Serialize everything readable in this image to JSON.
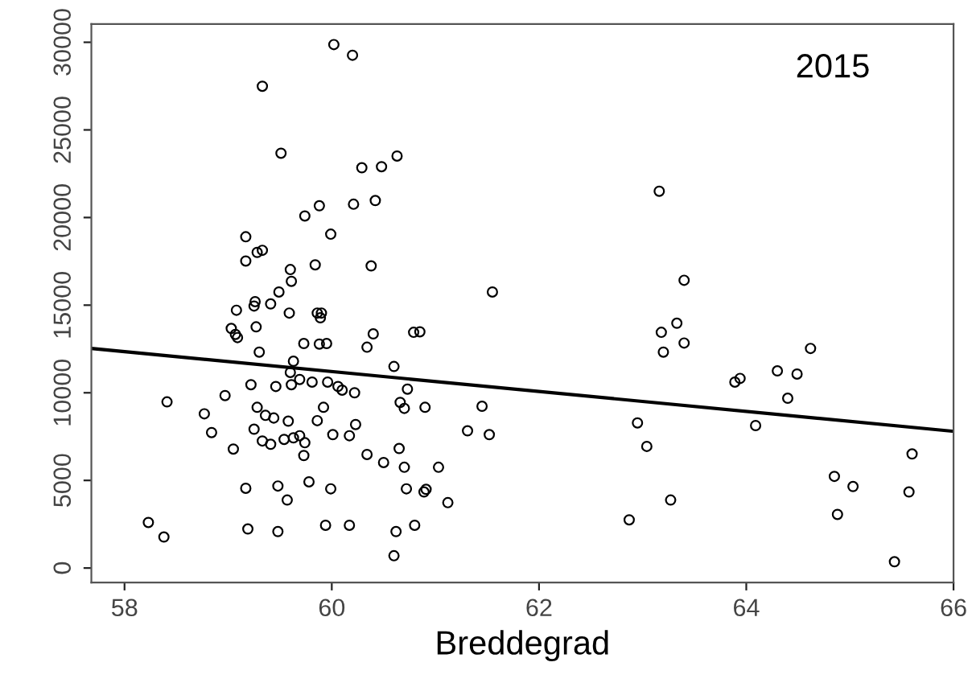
{
  "chart_data": {
    "type": "scatter",
    "xlabel": "Breddegrad",
    "annotations": [
      "2015"
    ],
    "xlim": [
      57.68,
      66.0
    ],
    "ylim": [
      -830,
      31040
    ],
    "xticks": [
      58,
      60,
      62,
      64,
      66
    ],
    "yticks": [
      0,
      5000,
      10000,
      15000,
      20000,
      25000,
      30000
    ],
    "grid": false,
    "legend": false,
    "marker": "circle",
    "series": [
      {
        "color": "#000000",
        "x": [
          60.02,
          60.2,
          59.33,
          59.51,
          60.29,
          60.48,
          60.63,
          59.74,
          59.88,
          60.21,
          60.42,
          59.99,
          59.17,
          59.17,
          59.28,
          59.33,
          59.84,
          60.38,
          59.6,
          59.61,
          59.49,
          59.08,
          59.26,
          59.25,
          59.41,
          59.59,
          59.86,
          59.9,
          59.89,
          59.03,
          59.07,
          59.09,
          59.27,
          60.4,
          60.79,
          60.85,
          61.55,
          59.73,
          59.88,
          59.95,
          60.34,
          59.3,
          60.6,
          59.63,
          59.6,
          59.69,
          59.81,
          59.96,
          59.22,
          59.46,
          59.61,
          60.06,
          60.1,
          60.22,
          60.73,
          58.97,
          60.66,
          60.7,
          60.9,
          61.45,
          58.41,
          58.77,
          59.28,
          59.36,
          59.44,
          59.58,
          59.92,
          59.86,
          60.23,
          59.25,
          58.84,
          59.63,
          59.69,
          59.74,
          59.54,
          59.41,
          59.33,
          59.73,
          59.05,
          60.01,
          60.17,
          61.31,
          61.52,
          60.34,
          60.5,
          60.65,
          60.7,
          61.03,
          59.17,
          59.48,
          59.57,
          59.78,
          59.99,
          60.72,
          60.91,
          60.89,
          61.12,
          58.23,
          58.38,
          59.19,
          59.48,
          59.94,
          60.17,
          60.62,
          60.8,
          60.6,
          63.16,
          63.4,
          63.33,
          63.18,
          63.4,
          63.2,
          64.62,
          64.3,
          64.49,
          63.89,
          63.94,
          64.4,
          64.09,
          62.95,
          63.04,
          63.27,
          62.87,
          64.85,
          65.03,
          64.88,
          65.6,
          65.57,
          65.43
        ],
        "values": [
          29870,
          29260,
          27490,
          23670,
          22840,
          22900,
          23510,
          20090,
          20670,
          20760,
          20970,
          19050,
          18900,
          17520,
          18010,
          18130,
          17300,
          17240,
          17030,
          16360,
          15750,
          14710,
          15200,
          14950,
          15070,
          14550,
          14550,
          14550,
          14280,
          13670,
          13330,
          13150,
          13760,
          13360,
          13450,
          13480,
          15750,
          12810,
          12780,
          12810,
          12600,
          12320,
          11500,
          11800,
          11160,
          10760,
          10610,
          10610,
          10460,
          10360,
          10460,
          10360,
          10150,
          10000,
          10210,
          9840,
          9450,
          9110,
          9170,
          9230,
          9480,
          8800,
          9170,
          8710,
          8560,
          8380,
          9170,
          8410,
          8190,
          7920,
          7730,
          7430,
          7550,
          7150,
          7340,
          7060,
          7250,
          6420,
          6790,
          7610,
          7550,
          7830,
          7610,
          6480,
          6020,
          6820,
          5750,
          5750,
          4550,
          4680,
          3880,
          4920,
          4520,
          4520,
          4490,
          4340,
          3730,
          2600,
          1770,
          2230,
          2080,
          2440,
          2440,
          2080,
          2440,
          700,
          21500,
          16420,
          13970,
          13450,
          12840,
          12320,
          12530,
          11250,
          11070,
          10610,
          10820,
          9690,
          8130,
          8280,
          6940,
          3880,
          2750,
          5230,
          4650,
          3060,
          6510,
          4340,
          360
        ]
      },
      {
        "type": "line",
        "color": "#000000",
        "marker": "none",
        "x": [
          57.68,
          66.0
        ],
        "values": [
          12530,
          7800
        ]
      }
    ]
  }
}
